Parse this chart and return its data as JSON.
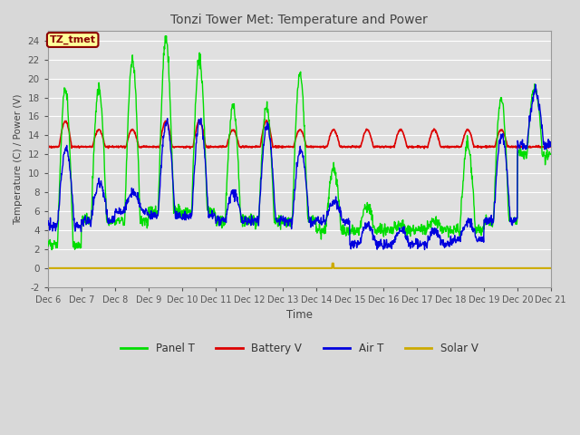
{
  "title": "Tonzi Tower Met: Temperature and Power",
  "xlabel": "Time",
  "ylabel": "Temperature (C) / Power (V)",
  "ylim": [
    -2,
    25
  ],
  "yticks": [
    -2,
    0,
    2,
    4,
    6,
    8,
    10,
    12,
    14,
    16,
    18,
    20,
    22,
    24
  ],
  "xlim": [
    6,
    21
  ],
  "xtick_labels": [
    "Dec 6",
    "Dec 7",
    "Dec 8",
    "Dec 9",
    "Dec 10",
    "Dec 11",
    "Dec 12",
    "Dec 13",
    "Dec 14",
    "Dec 15",
    "Dec 16",
    "Dec 17",
    "Dec 18",
    "Dec 19",
    "Dec 20",
    "Dec 21"
  ],
  "bg_color": "#d8d8d8",
  "plot_bg_color": "#e0e0e0",
  "grid_color": "white",
  "annotation_text": "TZ_tmet",
  "annotation_bg": "#ffff99",
  "annotation_fg": "#8b0000",
  "legend_labels": [
    "Panel T",
    "Battery V",
    "Air T",
    "Solar V"
  ],
  "panel_t_color": "#00dd00",
  "battery_v_color": "#dd0000",
  "air_t_color": "#0000dd",
  "solar_v_color": "#ccaa00",
  "figsize": [
    6.4,
    4.8
  ],
  "dpi": 100
}
